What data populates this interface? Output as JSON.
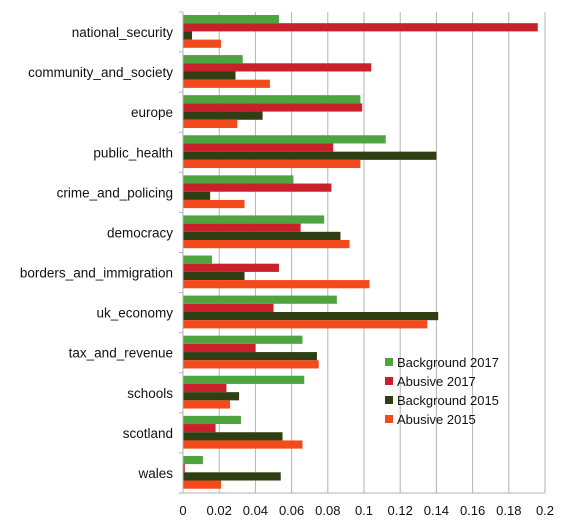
{
  "chart_data": {
    "type": "bar",
    "orientation": "horizontal",
    "categories": [
      "national_security",
      "community_and_society",
      "europe",
      "public_health",
      "crime_and_policing",
      "democracy",
      "borders_and_immigration",
      "uk_economy",
      "tax_and_revenue",
      "schools",
      "scotland",
      "wales"
    ],
    "series": [
      {
        "name": "Background 2017",
        "color": "#4ea53f",
        "values": [
          0.053,
          0.033,
          0.098,
          0.112,
          0.061,
          0.078,
          0.016,
          0.085,
          0.066,
          0.067,
          0.032,
          0.011
        ]
      },
      {
        "name": "Abusive 2017",
        "color": "#c9202a",
        "values": [
          0.196,
          0.104,
          0.099,
          0.083,
          0.082,
          0.065,
          0.053,
          0.05,
          0.04,
          0.024,
          0.018,
          0.001
        ]
      },
      {
        "name": "Background 2015",
        "color": "#2f3f13",
        "values": [
          0.005,
          0.029,
          0.044,
          0.14,
          0.015,
          0.087,
          0.034,
          0.141,
          0.074,
          0.031,
          0.055,
          0.054
        ]
      },
      {
        "name": "Abusive 2015",
        "color": "#f24a1b",
        "values": [
          0.021,
          0.048,
          0.03,
          0.098,
          0.034,
          0.092,
          0.103,
          0.135,
          0.075,
          0.026,
          0.066,
          0.021
        ]
      }
    ],
    "x_ticks": [
      "0",
      "0.02",
      "0.04",
      "0.06",
      "0.08",
      "0.1",
      "0.12",
      "0.14",
      "0.16",
      "0.18",
      "0.2"
    ],
    "xlim": [
      0,
      0.2
    ],
    "grid": true,
    "legend_position": "bottom-right",
    "title": "",
    "xlabel": "",
    "ylabel": ""
  }
}
